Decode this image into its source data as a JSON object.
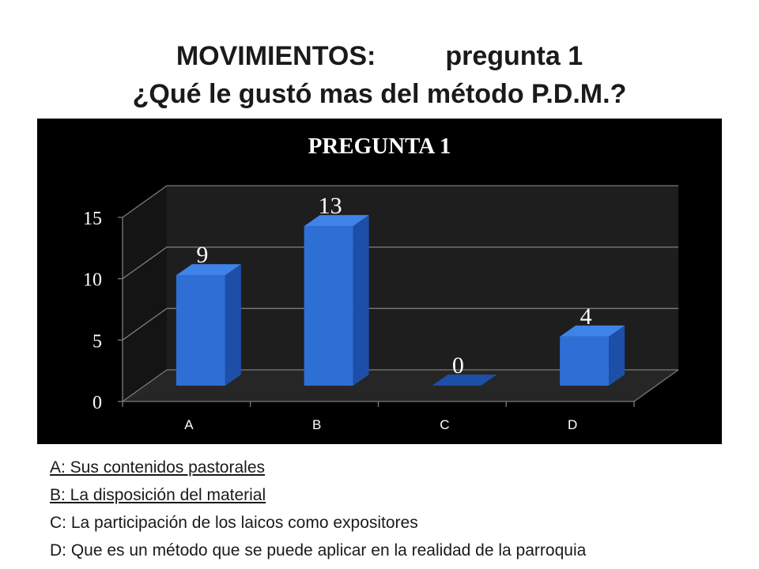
{
  "slide": {
    "title_line1_left": "MOVIMIENTOS:",
    "title_line1_right": "pregunta 1",
    "title_line2": "¿Qué le gustó mas del método P.D.M.?"
  },
  "legend": [
    {
      "text": "A: Sus contenidos pastorales",
      "underline": true
    },
    {
      "text": "B: La disposición del material",
      "underline": true
    },
    {
      "text": "C: La participación de los laicos como expositores",
      "underline": false
    },
    {
      "text": "D: Que es un método que se puede aplicar en la realidad de la parroquia",
      "underline": false
    }
  ],
  "colors": {
    "bar_front": "#2e6fd6",
    "bar_side": "#1d4ea8",
    "bar_top": "#3f83e8",
    "panel": "#000000",
    "wall": "#1e1e1e",
    "floor": "#262626",
    "grid": "#7a7a7a",
    "text": "#ffffff"
  },
  "chart_data": {
    "type": "bar",
    "title": "PREGUNTA 1",
    "categories": [
      "A",
      "B",
      "C",
      "D"
    ],
    "values": [
      9,
      13,
      0,
      4
    ],
    "data_labels": [
      "9",
      "13",
      "0",
      "4"
    ],
    "ylim": [
      0,
      15
    ],
    "yticks": [
      0,
      5,
      10,
      15
    ],
    "ytick_labels": [
      "0",
      "5",
      "10",
      "15"
    ],
    "grid": true,
    "style": "3d-column",
    "legend_position": "none"
  }
}
